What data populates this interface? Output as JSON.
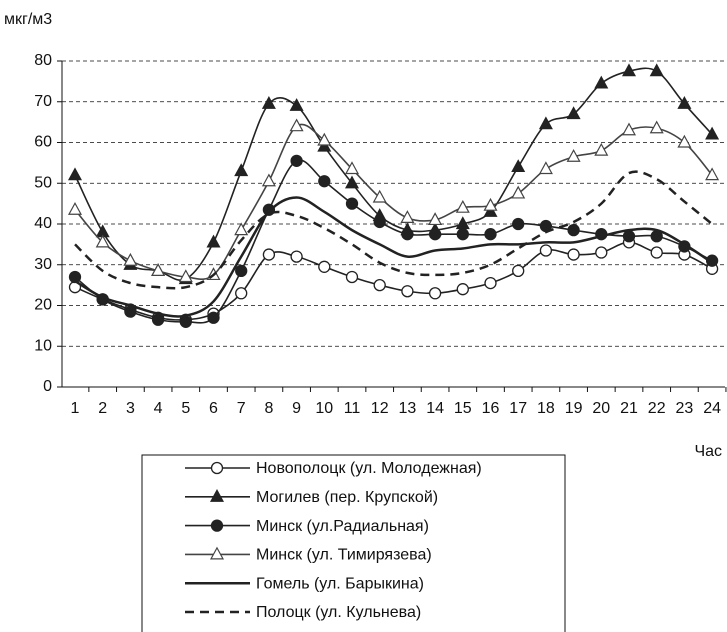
{
  "chart_data": {
    "type": "line",
    "y_axis_label": "мкг/м3",
    "x_axis_label": "Час",
    "categories": [
      "1",
      "2",
      "3",
      "4",
      "5",
      "6",
      "7",
      "8",
      "9",
      "10",
      "11",
      "12",
      "13",
      "14",
      "15",
      "16",
      "17",
      "18",
      "19",
      "20",
      "21",
      "22",
      "23",
      "24"
    ],
    "ylim": [
      0,
      80
    ],
    "yticks": [
      0,
      10,
      20,
      30,
      40,
      50,
      60,
      70,
      80
    ],
    "grid": true,
    "series": [
      {
        "name": "Новополоцк (ул. Молодежная)",
        "color": "#222222",
        "marker": "circle-open",
        "dash": "solid",
        "values": [
          24.5,
          21.5,
          19,
          17,
          16.5,
          18,
          23,
          32.5,
          32,
          29.5,
          27,
          25,
          23.5,
          23,
          24,
          25.5,
          28.5,
          33.5,
          32.5,
          33,
          35.5,
          33,
          32.5,
          29
        ]
      },
      {
        "name": "Могилев (пер. Крупской)",
        "color": "#222222",
        "marker": "triangle-filled",
        "dash": "solid",
        "values": [
          52,
          38,
          30,
          28.5,
          26.5,
          35.5,
          53,
          69.5,
          69,
          59,
          50,
          42,
          38.5,
          38.5,
          40,
          43,
          54,
          64.5,
          67,
          74.5,
          77.5,
          77.5,
          69.5,
          62
        ]
      },
      {
        "name": "Минск (ул.Радиальная)",
        "color": "#222222",
        "marker": "circle-filled",
        "dash": "solid",
        "values": [
          27,
          21.5,
          18.5,
          16.5,
          16,
          17,
          28.5,
          43.5,
          55.5,
          50.5,
          45,
          40.5,
          37.5,
          37.5,
          37.5,
          37.5,
          40,
          39.5,
          38.5,
          37.5,
          37,
          37,
          34.5,
          31
        ]
      },
      {
        "name": "Минск (ул. Тимирязева)",
        "color": "#444444",
        "marker": "triangle-open",
        "dash": "solid",
        "values": [
          43.5,
          35.5,
          31,
          28.5,
          27,
          27.5,
          38.5,
          50.5,
          64,
          60.5,
          53.5,
          46.5,
          41.5,
          41,
          44,
          44.5,
          47.5,
          53.5,
          56.5,
          58,
          63,
          63.5,
          60,
          52
        ]
      },
      {
        "name": "Гомель (ул. Барыкина)",
        "color": "#222222",
        "marker": "none",
        "dash": "solid",
        "values": [
          26,
          22,
          20,
          18,
          17.5,
          21,
          32,
          43,
          46.5,
          43,
          38.5,
          35,
          32,
          33.5,
          34,
          35,
          35,
          35.5,
          35.5,
          37,
          38.5,
          38.5,
          35,
          30.5
        ]
      },
      {
        "name": "Полоцк (ул. Кульнева)",
        "color": "#222222",
        "marker": "none",
        "dash": "dashed",
        "values": [
          35,
          28.5,
          25.5,
          24.5,
          24.5,
          27.5,
          36,
          42.5,
          42,
          39,
          35,
          30.5,
          28,
          27.5,
          28,
          30,
          34,
          38,
          40.5,
          45,
          52.5,
          51,
          45.5,
          40
        ]
      }
    ]
  }
}
